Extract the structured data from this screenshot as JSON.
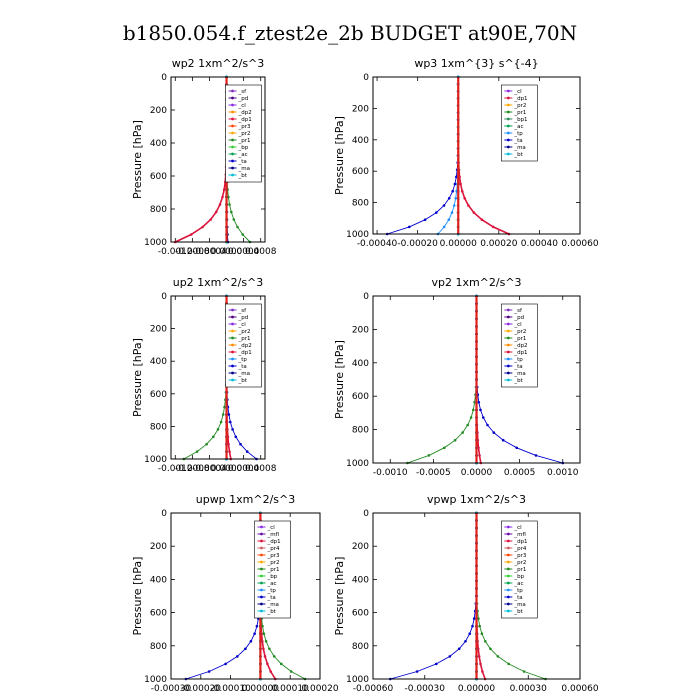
{
  "figure": {
    "title": "b1850.054.f_ztest2e_2b  BUDGET at90E,70N"
  },
  "colors": {
    "_sf": "#7b2fbe",
    "_pd": "#4b0082",
    "_cl": "#8a2be2",
    "_mfl": "#6a0dad",
    "_dp1": "#dc143c",
    "_dp2": "#ff8c00",
    "_pr1": "#228b22",
    "_pr2": "#ffa500",
    "_pr3": "#ff4500",
    "_pr4": "#cd5c5c",
    "_bp": "#32cd32",
    "_bp1": "#2e8b57",
    "_ac": "#00a050",
    "_tp": "#1e90ff",
    "_ta": "#0000cd",
    "_ma": "#00008b",
    "_bt": "#00bcd4"
  },
  "chart_data": [
    {
      "type": "line",
      "title": "wp2   1xm^2/s^3",
      "ylabel": "Pressure  [hPa]",
      "ylim": [
        1000,
        0
      ],
      "yticks": [
        0,
        200,
        400,
        600,
        800,
        1000
      ],
      "xlim": [
        -0.0013,
        0.0009
      ],
      "xticks": [
        -0.0012,
        -0.0008,
        -0.0004,
        0.0,
        0.0004,
        0.0008
      ],
      "xticklabels": [
        "-0.0012",
        "-0.0008",
        "-0.0004",
        "0.0000",
        "0.0004",
        "0.0008"
      ],
      "legend": [
        "_sf",
        "_pd",
        "_cl",
        "_dp2",
        "_dp1",
        "_pr3",
        "_pr2",
        "_pr1",
        "_bp",
        "_ac",
        "_ta",
        "_ma",
        "_bt"
      ],
      "lowlevel": {
        "_dp1": -0.0012,
        "_pr1": 0.00055,
        "_bp": 3e-05,
        "_ta": 3e-05,
        "_ma": 3e-05
      }
    },
    {
      "type": "line",
      "title": "wp3   1xm^{3} s^{-4}",
      "ylabel": "Pressure  [hPa]",
      "ylim": [
        1000,
        0
      ],
      "yticks": [
        0,
        200,
        400,
        600,
        800,
        1000
      ],
      "xlim": [
        -0.00042,
        0.0006
      ],
      "xticks": [
        -0.0004,
        -0.0002,
        0.0,
        0.0002,
        0.0004,
        0.0006
      ],
      "xticklabels": [
        "-0.00040",
        "-0.00020",
        "0.00000",
        "0.00020",
        "0.00040",
        "0.00060"
      ],
      "legend": [
        "_cl",
        "_dp1",
        "_pr2",
        "_pr1",
        "_bp1",
        "_ac",
        "_tp",
        "_ta",
        "_ma",
        "_bt"
      ],
      "lowlevel": {
        "_ta": -0.00035,
        "_tp": -0.0001,
        "_dp1": 0.00025
      }
    },
    {
      "type": "line",
      "title": "up2   1xm^2/s^3",
      "ylabel": "Pressure  [hPa]",
      "ylim": [
        1000,
        0
      ],
      "yticks": [
        0,
        200,
        400,
        600,
        800,
        1000
      ],
      "xlim": [
        -0.0013,
        0.0009
      ],
      "xticks": [
        -0.0012,
        -0.0008,
        -0.0004,
        0.0,
        0.0004,
        0.0008
      ],
      "xticklabels": [
        "-0.0012",
        "-0.0008",
        "-0.0004",
        "0.0000",
        "0.0004",
        "0.0008"
      ],
      "legend": [
        "_sf",
        "_pd",
        "_cl",
        "_pr2",
        "_pr1",
        "_dp2",
        "_dp1",
        "_tp",
        "_ta",
        "_ma",
        "_bt"
      ],
      "lowlevel": {
        "_pr1": -0.001,
        "_ta": 0.0007,
        "_dp1": 0.0001
      }
    },
    {
      "type": "line",
      "title": "vp2   1xm^2/s^3",
      "ylabel": "Pressure  [hPa]",
      "ylim": [
        1000,
        0
      ],
      "yticks": [
        0,
        200,
        400,
        600,
        800,
        1000
      ],
      "xlim": [
        -0.0012,
        0.0012
      ],
      "xticks": [
        -0.001,
        -0.0005,
        0.0,
        0.0005,
        0.001
      ],
      "xticklabels": [
        "-0.0010",
        "-0.0005",
        "0.0000",
        "0.0005",
        "0.0010"
      ],
      "legend": [
        "_sf",
        "_pd",
        "_cl",
        "_pr2",
        "_pr1",
        "_dp2",
        "_dp1",
        "_tp",
        "_ta",
        "_ma",
        "_bt"
      ],
      "lowlevel": {
        "_pr1": -0.0008,
        "_ta": 0.001,
        "_dp1": 5e-05
      }
    },
    {
      "type": "line",
      "title": "upwp   1xm^2/s^3",
      "ylabel": "Pressure  [hPa]",
      "ylim": [
        1000,
        0
      ],
      "yticks": [
        0,
        200,
        400,
        600,
        800,
        1000
      ],
      "xlim": [
        -0.0003,
        0.0002
      ],
      "xticks": [
        -0.0003,
        -0.0002,
        -0.0001,
        0.0,
        0.0001,
        0.0002
      ],
      "xticklabels": [
        "-0.00030",
        "-0.00020",
        "-0.00010",
        "0.00000",
        "0.00010",
        "0.00020"
      ],
      "legend": [
        "_cl",
        "_mfl",
        "_dp1",
        "_pr4",
        "_pr3",
        "_pr2",
        "_pr1",
        "_bp",
        "_ac",
        "_tp",
        "_ta",
        "_ma",
        "_bt"
      ],
      "lowlevel": {
        "_ta": -0.00025,
        "_pr1": 0.00015,
        "_dp1": 5e-05
      }
    },
    {
      "type": "line",
      "title": "vpwp   1xm^2/s^3",
      "ylabel": "Pressure  [hPa]",
      "ylim": [
        1000,
        0
      ],
      "yticks": [
        0,
        200,
        400,
        600,
        800,
        1000
      ],
      "xlim": [
        -0.0006,
        0.0006
      ],
      "xticks": [
        -0.0006,
        -0.0003,
        0.0,
        0.0003,
        0.0006
      ],
      "xticklabels": [
        "-0.00060",
        "-0.00030",
        "0.00000",
        "0.00030",
        "0.00060"
      ],
      "legend": [
        "_cl",
        "_mfl",
        "_dp1",
        "_pr4",
        "_pr3",
        "_pr2",
        "_pr1",
        "_bp",
        "_ac",
        "_tp",
        "_ta",
        "_ma",
        "_bt"
      ],
      "lowlevel": {
        "_ta": -0.0005,
        "_pr1": 0.0004,
        "_dp1": 5e-05
      }
    }
  ]
}
